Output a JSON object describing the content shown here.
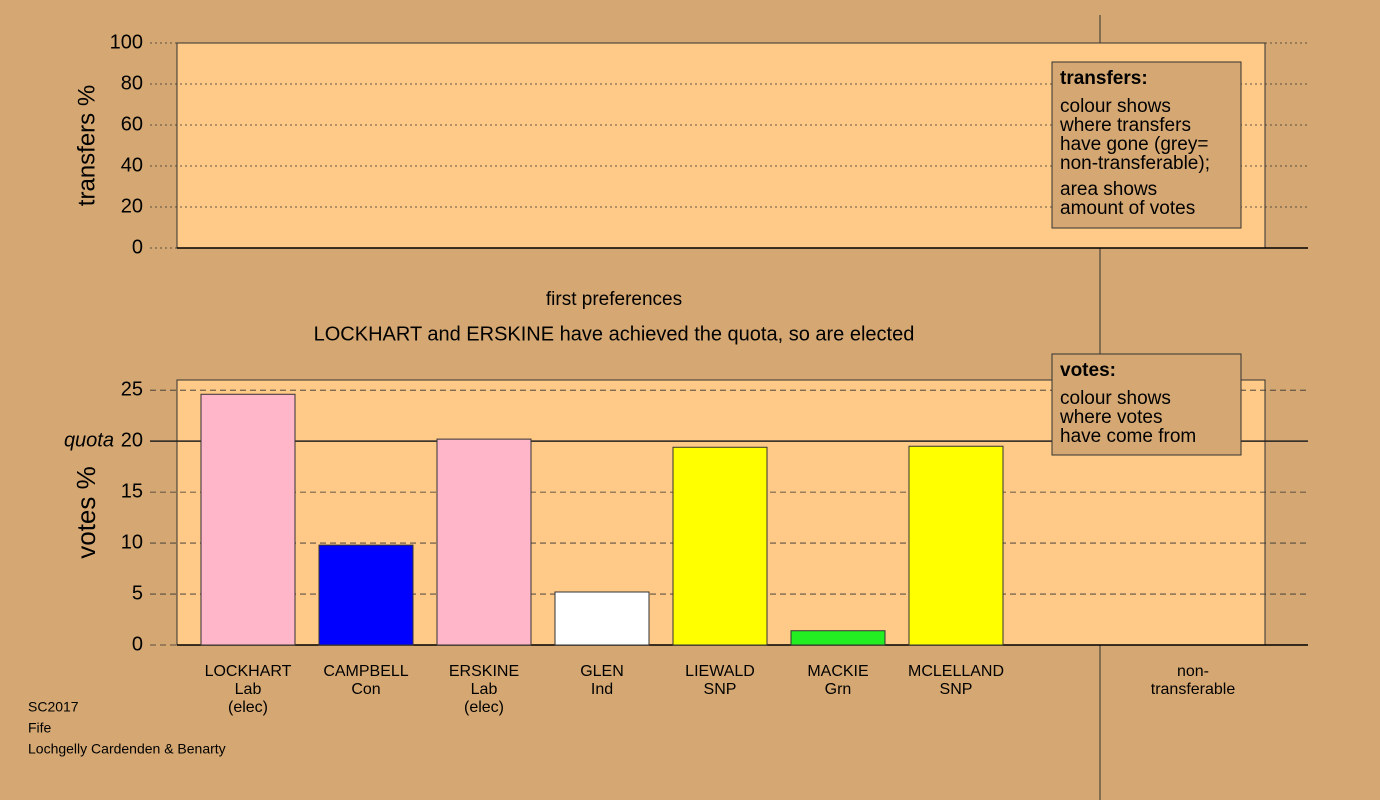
{
  "chart_data": [
    {
      "type": "bar",
      "ylabel": "transfers %",
      "ylim": [
        0,
        100
      ],
      "yticks": [
        0,
        20,
        40,
        60,
        80,
        100
      ],
      "categories": [],
      "values": [],
      "legend": {
        "title": "transfers:",
        "lines": [
          "colour shows",
          "where transfers",
          "have gone (grey=",
          "non-transferable);",
          "area shows",
          "amount of votes"
        ]
      }
    },
    {
      "type": "bar",
      "title": "first preferences",
      "subtitle": "LOCKHART and ERSKINE have achieved the quota, so are elected",
      "ylabel": "votes %",
      "ylim": [
        0,
        26
      ],
      "yticks": [
        0,
        5,
        10,
        15,
        20,
        25
      ],
      "quota": {
        "value": 20,
        "label": "quota"
      },
      "categories": [
        [
          "LOCKHART",
          "Lab",
          "(elec)"
        ],
        [
          "CAMPBELL",
          "Con"
        ],
        [
          "ERSKINE",
          "Lab",
          "(elec)"
        ],
        [
          "GLEN",
          "Ind"
        ],
        [
          "LIEWALD",
          "SNP"
        ],
        [
          "MACKIE",
          "Grn"
        ],
        [
          "MCLELLAND",
          "SNP"
        ],
        [
          "non-",
          "transferable"
        ]
      ],
      "values": [
        24.6,
        9.8,
        20.2,
        5.2,
        19.4,
        1.4,
        19.5,
        null
      ],
      "colors": [
        "#ffb6c8",
        "#0000ff",
        "#ffb6c8",
        "#ffffff",
        "#ffff00",
        "#22ee22",
        "#ffff00",
        null
      ],
      "legend": {
        "title": "votes:",
        "lines": [
          "colour shows",
          "where votes",
          "have come from"
        ]
      }
    }
  ],
  "footer": [
    "SC2017",
    "Fife",
    "Lochgelly Cardenden & Benarty"
  ]
}
